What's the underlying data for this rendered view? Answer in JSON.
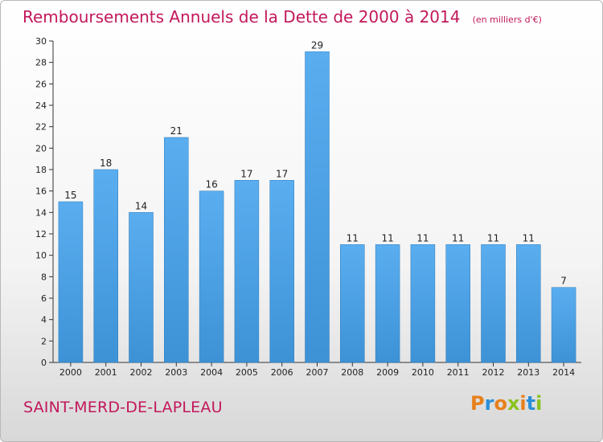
{
  "chart_data": {
    "type": "bar",
    "title": "Remboursements Annuels de la Dette de 2000 à 2014",
    "subtitle": "(en milliers d'€)",
    "categories": [
      "2000",
      "2001",
      "2002",
      "2003",
      "2004",
      "2005",
      "2006",
      "2007",
      "2008",
      "2009",
      "2010",
      "2011",
      "2012",
      "2013",
      "2014"
    ],
    "values": [
      15,
      18,
      14,
      21,
      16,
      17,
      17,
      29,
      11,
      11,
      11,
      11,
      11,
      11,
      7
    ],
    "ylim": [
      0,
      30
    ],
    "yticks": [
      0,
      2,
      4,
      6,
      8,
      10,
      12,
      14,
      16,
      18,
      20,
      22,
      24,
      26,
      28,
      30
    ],
    "xlabel": "",
    "ylabel": "",
    "grid": false,
    "bar_color": "#3d92d6"
  },
  "footer": {
    "commune": "SAINT-MERD-DE-LAPLEAU",
    "brand_letters": [
      "P",
      "r",
      "o",
      "x",
      "i",
      "t",
      "i"
    ],
    "brand_colors": [
      "#e8801a",
      "#2a8fd8",
      "#e8801a",
      "#8bc21d",
      "#e8801a",
      "#2a8fd8",
      "#8bc21d"
    ]
  }
}
